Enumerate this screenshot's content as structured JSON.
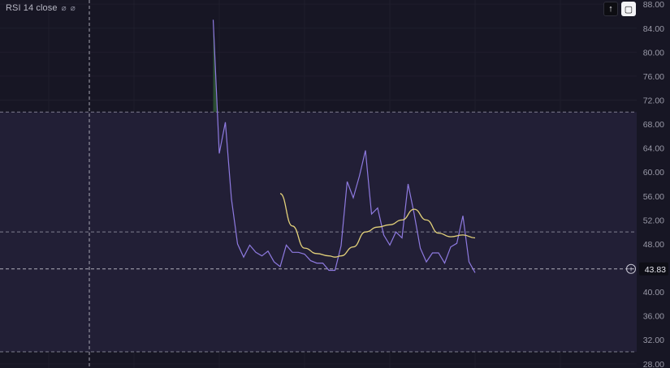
{
  "indicator": {
    "label": "RSI 14 close",
    "settings_icons": [
      "circle-slash-icon",
      "circle-slash-icon"
    ],
    "settings_glyph": "⌀"
  },
  "toolbar": {
    "up_glyph": "↑",
    "fit_glyph": "▢"
  },
  "price_badge": {
    "value": "43.83",
    "add_glyph": "+"
  },
  "colors": {
    "background": "#171624",
    "band_fill": "#221f36",
    "rsi_line": "#8e7ae0",
    "ma_line": "#e3d17a",
    "spike_fill": "#2f5a34",
    "grid": "#1f1e2c",
    "dashed": "#a0a0b0"
  },
  "chart_data": {
    "type": "line",
    "title": "",
    "y_axis_ticks": [
      "88.00",
      "84.00",
      "80.00",
      "76.00",
      "72.00",
      "68.00",
      "64.00",
      "60.00",
      "56.00",
      "52.00",
      "48.00",
      "44.00",
      "40.00",
      "36.00",
      "32.00",
      "28.00"
    ],
    "ylim": [
      27.3,
      88.7
    ],
    "xlim": [
      0,
      100
    ],
    "upper_band": 70,
    "middle_band": 50,
    "lower_band": 30,
    "current_value": 43.83,
    "series": [
      {
        "x": [
          35,
          36,
          37,
          38,
          39,
          40,
          41,
          42,
          43,
          44,
          45,
          46,
          47,
          48,
          49,
          50,
          51,
          52,
          53,
          54,
          55,
          56,
          57,
          58,
          59,
          60,
          61,
          62,
          63,
          64,
          65,
          66,
          67,
          68,
          69,
          70,
          71,
          72,
          73,
          74,
          75,
          76,
          77,
          78
        ],
        "values": [
          85.4,
          63.1,
          68.3,
          55.5,
          48.0,
          45.8,
          47.8,
          46.6,
          46.0,
          46.8,
          45.0,
          44.2,
          47.8,
          46.6,
          46.6,
          46.3,
          45.2,
          44.8,
          44.8,
          43.6,
          43.6,
          47.7,
          58.4,
          55.7,
          59.3,
          63.6,
          53.0,
          54.0,
          49.5,
          47.8,
          50.0,
          49.0,
          58.0,
          53.0,
          47.3,
          45.0,
          46.5,
          46.5,
          44.8,
          47.5,
          48.1,
          52.7,
          45.0,
          43.2
        ]
      },
      {
        "x": [
          46,
          48,
          50,
          52,
          54,
          55,
          56,
          58,
          60,
          62,
          64,
          66,
          68,
          70,
          72,
          74,
          76,
          78
        ],
        "values": [
          56.4,
          51.0,
          47.3,
          46.4,
          46.0,
          45.8,
          46.0,
          47.5,
          50.0,
          50.8,
          51.2,
          52.0,
          53.8,
          52.0,
          49.8,
          49.2,
          49.5,
          49.0
        ]
      }
    ]
  }
}
